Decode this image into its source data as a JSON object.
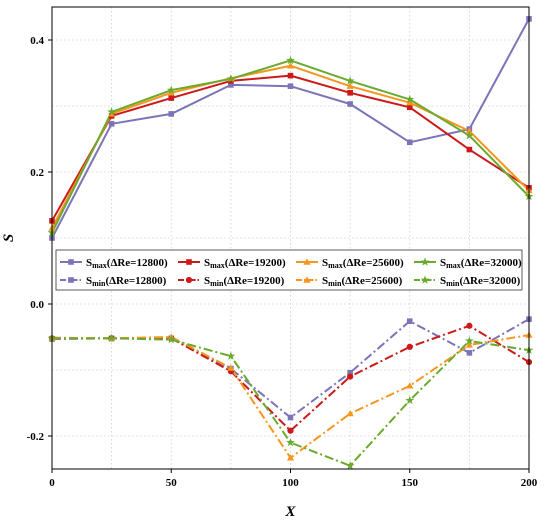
{
  "chart_data": {
    "type": "line",
    "xlabel": "X",
    "ylabel": "S",
    "xlim": [
      0,
      200
    ],
    "ylim": [
      -0.25,
      0.45
    ],
    "xticks": [
      0,
      50,
      100,
      150,
      200
    ],
    "yticks": [
      -0.2,
      0.0,
      0.2,
      0.4
    ],
    "xtick_labels": [
      "0",
      "50",
      "100",
      "150",
      "200"
    ],
    "ytick_labels": [
      "-0.2",
      "0.0",
      "0.2",
      "0.4"
    ],
    "grid": true,
    "legend_position": "center",
    "series": [
      {
        "name": "S_max(ΔRe=12800)",
        "label_main": "S",
        "label_sub": "max",
        "label_rest": "(ΔRe=12800)",
        "color": "#7b74b8",
        "marker": "square",
        "dash": "solid",
        "x": [
          0,
          25,
          50,
          75,
          100,
          125,
          150,
          175,
          200
        ],
        "y": [
          0.1,
          0.273,
          0.288,
          0.332,
          0.33,
          0.303,
          0.245,
          0.265,
          0.432
        ]
      },
      {
        "name": "S_max(ΔRe=19200)",
        "label_main": "S",
        "label_sub": "max",
        "label_rest": "(ΔRe=19200)",
        "color": "#cc1a1a",
        "marker": "square",
        "dash": "solid",
        "x": [
          0,
          25,
          50,
          75,
          100,
          125,
          150,
          175,
          200
        ],
        "y": [
          0.126,
          0.285,
          0.312,
          0.338,
          0.346,
          0.32,
          0.298,
          0.234,
          0.176
        ]
      },
      {
        "name": "S_max(ΔRe=25600)",
        "label_main": "S",
        "label_sub": "max",
        "label_rest": "(ΔRe=25600)",
        "color": "#f5961e",
        "marker": "triangle",
        "dash": "solid",
        "x": [
          0,
          25,
          50,
          75,
          100,
          125,
          150,
          175,
          200
        ],
        "y": [
          0.115,
          0.288,
          0.32,
          0.342,
          0.361,
          0.33,
          0.305,
          0.262,
          0.172
        ]
      },
      {
        "name": "S_max(ΔRe=32000)",
        "label_main": "S",
        "label_sub": "max",
        "label_rest": "(ΔRe=32000)",
        "color": "#6aaa2e",
        "marker": "star",
        "dash": "solid",
        "x": [
          0,
          25,
          50,
          75,
          100,
          125,
          150,
          175,
          200
        ],
        "y": [
          0.108,
          0.291,
          0.324,
          0.341,
          0.369,
          0.338,
          0.31,
          0.255,
          0.163
        ]
      },
      {
        "name": "S_min(ΔRe=12800)",
        "label_main": "S",
        "label_sub": "min",
        "label_rest": "(ΔRe=12800)",
        "color": "#7b74b8",
        "marker": "square",
        "dash": "dashdot",
        "x": [
          0,
          25,
          50,
          75,
          100,
          125,
          150,
          175,
          200
        ],
        "y": [
          -0.053,
          -0.052,
          -0.052,
          -0.098,
          -0.172,
          -0.104,
          -0.026,
          -0.074,
          -0.023
        ]
      },
      {
        "name": "S_min(ΔRe=19200)",
        "label_main": "S",
        "label_sub": "min",
        "label_rest": "(ΔRe=19200)",
        "color": "#cc1a1a",
        "marker": "circle",
        "dash": "dashdot",
        "x": [
          0,
          25,
          50,
          75,
          100,
          125,
          150,
          175,
          200
        ],
        "y": [
          -0.052,
          -0.052,
          -0.052,
          -0.102,
          -0.192,
          -0.11,
          -0.065,
          -0.033,
          -0.088
        ]
      },
      {
        "name": "S_min(ΔRe=25600)",
        "label_main": "S",
        "label_sub": "min",
        "label_rest": "(ΔRe=25600)",
        "color": "#f5961e",
        "marker": "triangle",
        "dash": "dashdot",
        "x": [
          0,
          25,
          50,
          75,
          100,
          125,
          150,
          175,
          200
        ],
        "y": [
          -0.051,
          -0.052,
          -0.05,
          -0.097,
          -0.233,
          -0.166,
          -0.124,
          -0.062,
          -0.047
        ]
      },
      {
        "name": "S_min(ΔRe=32000)",
        "label_main": "S",
        "label_sub": "min",
        "label_rest": "(ΔRe=32000)",
        "color": "#6aaa2e",
        "marker": "star",
        "dash": "dashdot",
        "x": [
          0,
          25,
          50,
          75,
          100,
          125,
          150,
          175,
          200
        ],
        "y": [
          -0.052,
          -0.052,
          -0.054,
          -0.079,
          -0.21,
          -0.245,
          -0.146,
          -0.056,
          -0.07
        ]
      }
    ]
  }
}
